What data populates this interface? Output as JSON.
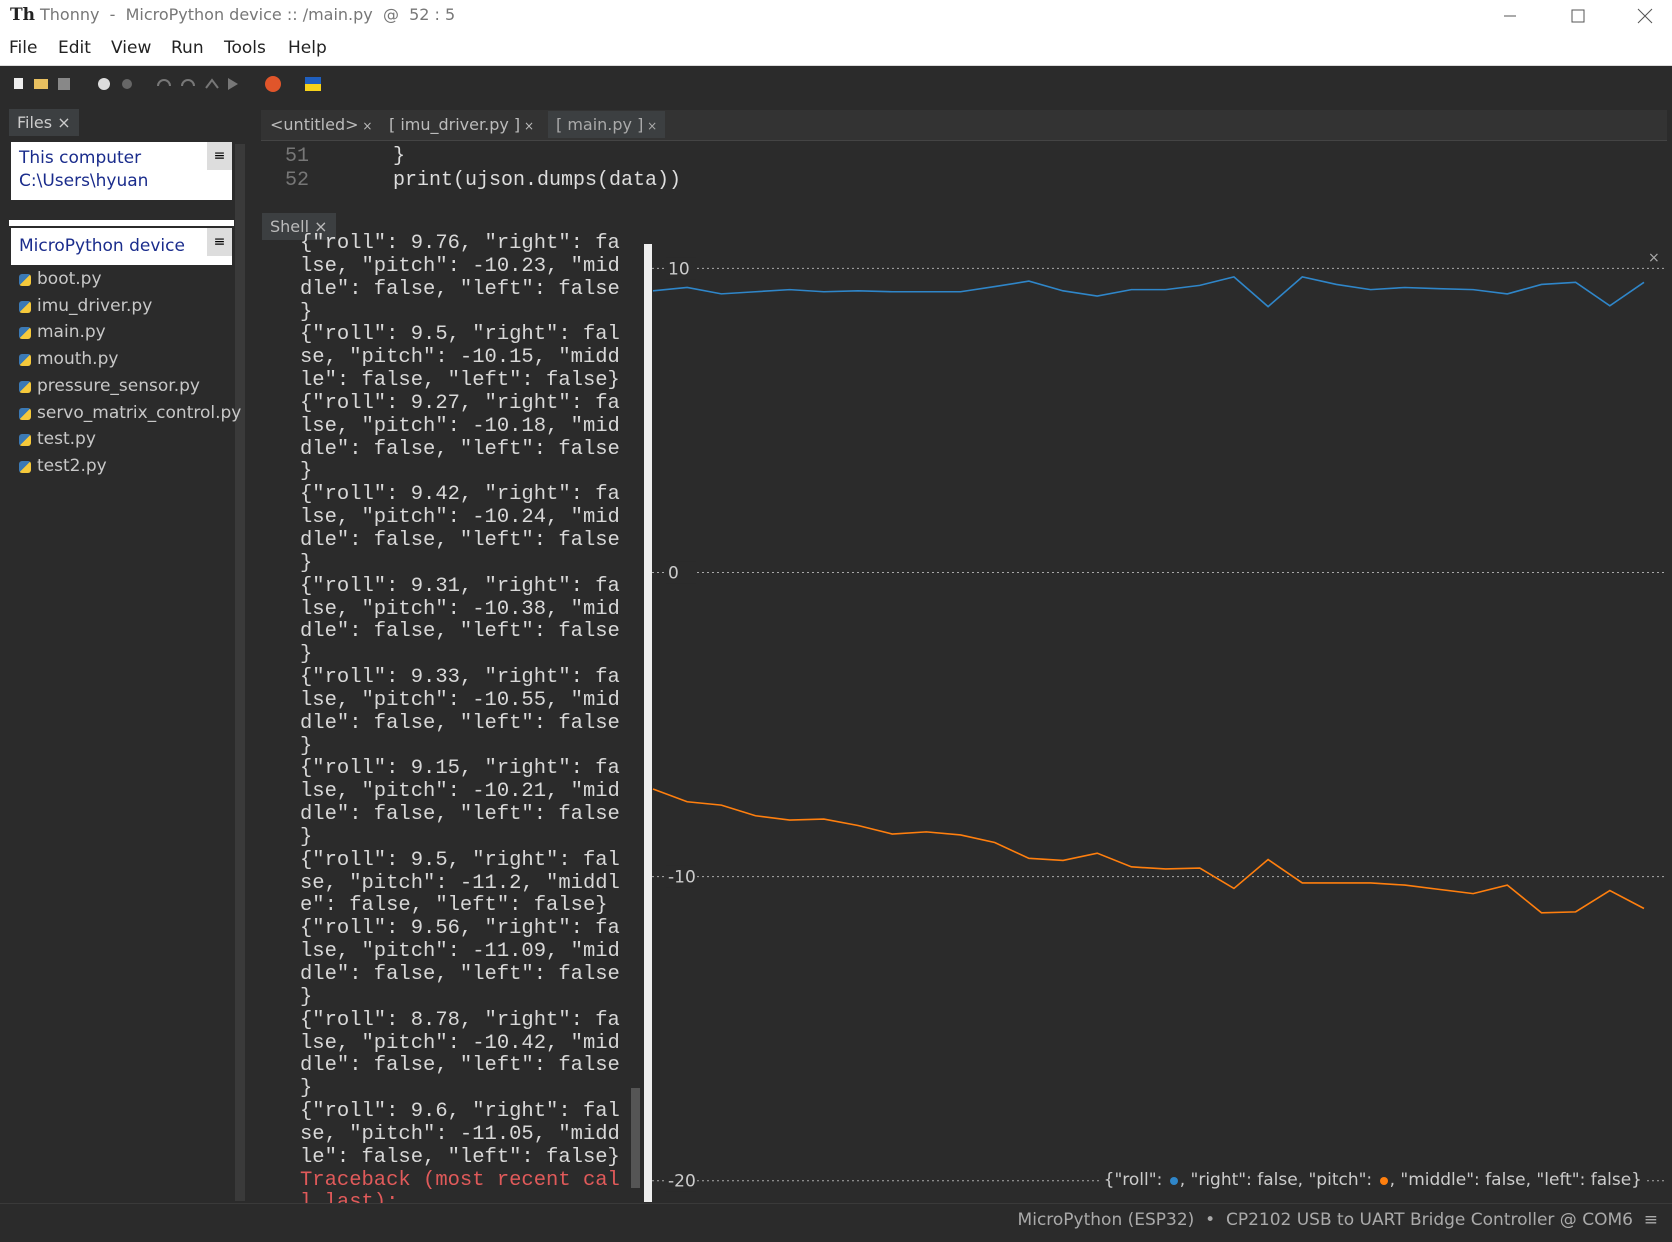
{
  "window": {
    "title": "Thonny  -  MicroPython device :: /main.py  @  52 : 5"
  },
  "menu": [
    "File",
    "Edit",
    "View",
    "Run",
    "Tools",
    "Help"
  ],
  "files_panel": {
    "tab": "Files",
    "computer": {
      "title": "This computer",
      "path": "C:\\Users\\hyuan"
    },
    "device": {
      "title": "MicroPython device",
      "files": [
        "boot.py",
        "imu_driver.py",
        "main.py",
        "mouth.py",
        "pressure_sensor.py",
        "servo_matrix_control.py",
        "test.py",
        "test2.py"
      ]
    }
  },
  "editor": {
    "tabs": [
      "<untitled>",
      "[ imu_driver.py ]",
      "[ main.py ]"
    ],
    "lines": [
      {
        "number": "51",
        "code": "    }"
      },
      {
        "number": "52",
        "code": "    print(ujson.dumps(data))"
      }
    ]
  },
  "shell": {
    "tab": "Shell",
    "lines": [
      "{\"roll\": 9.76, \"right\": fa",
      "lse, \"pitch\": -10.23, \"mid",
      "dle\": false, \"left\": false",
      "}",
      "{\"roll\": 9.5, \"right\": fal",
      "se, \"pitch\": -10.15, \"midd",
      "le\": false, \"left\": false}",
      "{\"roll\": 9.27, \"right\": fa",
      "lse, \"pitch\": -10.18, \"mid",
      "dle\": false, \"left\": false",
      "}",
      "{\"roll\": 9.42, \"right\": fa",
      "lse, \"pitch\": -10.24, \"mid",
      "dle\": false, \"left\": false",
      "}",
      "{\"roll\": 9.31, \"right\": fa",
      "lse, \"pitch\": -10.38, \"mid",
      "dle\": false, \"left\": false",
      "}",
      "{\"roll\": 9.33, \"right\": fa",
      "lse, \"pitch\": -10.55, \"mid",
      "dle\": false, \"left\": false",
      "}",
      "{\"roll\": 9.15, \"right\": fa",
      "lse, \"pitch\": -10.21, \"mid",
      "dle\": false, \"left\": false",
      "}",
      "{\"roll\": 9.5, \"right\": fal",
      "se, \"pitch\": -11.2, \"middl",
      "e\": false, \"left\": false}",
      "{\"roll\": 9.56, \"right\": fa",
      "lse, \"pitch\": -11.09, \"mid",
      "dle\": false, \"left\": false",
      "}",
      "{\"roll\": 8.78, \"right\": fa",
      "lse, \"pitch\": -10.42, \"mid",
      "dle\": false, \"left\": false",
      "}",
      "{\"roll\": 9.6, \"right\": fal",
      "se, \"pitch\": -11.05, \"midd",
      "le\": false, \"left\": false}"
    ],
    "error_lines": [
      "Traceback (most recent cal",
      "l last):"
    ]
  },
  "chart_data": {
    "type": "line",
    "ylim": [
      -20.7,
      10.8
    ],
    "yticks": [
      10,
      0,
      -10,
      -20
    ],
    "grid": true,
    "legend_parts": [
      "{\"roll\": ",
      ", \"right\": false, \"pitch\": ",
      ", \"middle\": false, \"left\": false}"
    ],
    "series": [
      {
        "color": "#2f86c9",
        "values": [
          9.26,
          9.37,
          9.16,
          9.23,
          9.3,
          9.23,
          9.26,
          9.23,
          9.23,
          9.23,
          9.4,
          9.58,
          9.26,
          9.09,
          9.3,
          9.3,
          9.44,
          9.72,
          8.74,
          9.72,
          9.47,
          9.3,
          9.37,
          9.33,
          9.3,
          9.16,
          9.47,
          9.54,
          8.77,
          9.54
        ]
      },
      {
        "color": "#ff7f0e",
        "values": [
          -7.12,
          -7.54,
          -7.65,
          -8.0,
          -8.14,
          -8.11,
          -8.32,
          -8.6,
          -8.53,
          -8.63,
          -8.88,
          -9.4,
          -9.47,
          -9.23,
          -9.68,
          -9.75,
          -9.72,
          -10.39,
          -9.44,
          -10.21,
          -10.21,
          -10.21,
          -10.28,
          -10.42,
          -10.56,
          -10.28,
          -11.19,
          -11.16,
          -10.46,
          -11.05
        ]
      }
    ]
  },
  "status_bar": "MicroPython (ESP32)  •  CP2102 USB to UART Bridge Controller @ COM6  ≡"
}
